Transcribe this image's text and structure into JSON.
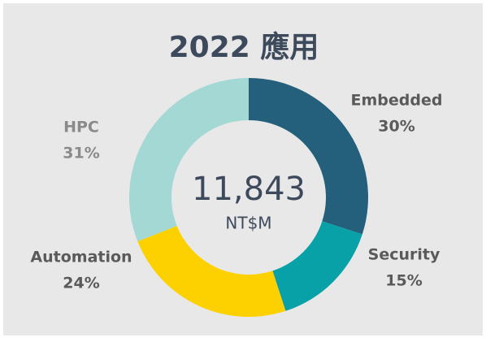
{
  "chart_data": {
    "type": "donut",
    "title": "2022 應用",
    "center_text": "11,843",
    "center_unit": "NT$M",
    "categories": [
      "Embedded",
      "Security",
      "Automation",
      "HPC"
    ],
    "values": [
      30,
      15,
      24,
      31
    ],
    "value_labels": [
      "30%",
      "15%",
      "24%",
      "31%"
    ],
    "colors": [
      "#24607b",
      "#09a1a8",
      "#fdd100",
      "#a3d8d4"
    ]
  }
}
